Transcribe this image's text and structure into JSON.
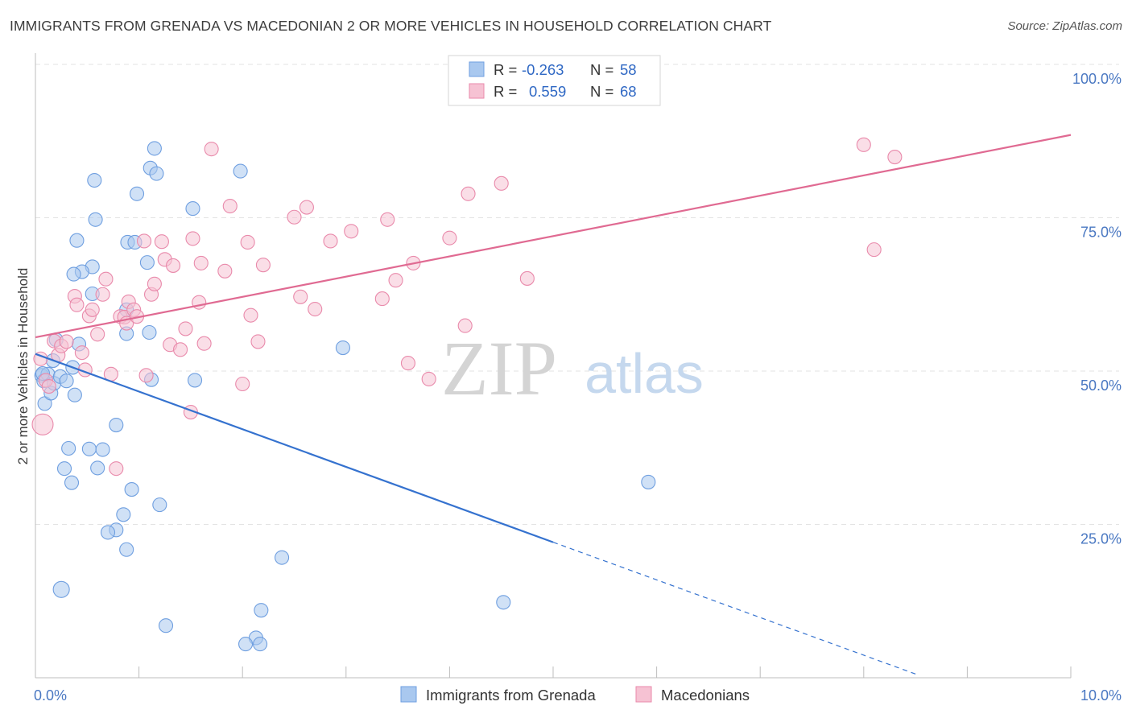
{
  "title": "IMMIGRANTS FROM GRENADA VS MACEDONIAN 2 OR MORE VEHICLES IN HOUSEHOLD CORRELATION CHART",
  "source": "Source: ZipAtlas.com",
  "watermark": {
    "zip": "ZIP",
    "atlas": "atlas"
  },
  "colors": {
    "blue_fill": "#a9c8ef",
    "blue_stroke": "#6f9fe0",
    "blue_line": "#3572cf",
    "pink_fill": "#f6c2d3",
    "pink_stroke": "#e98aab",
    "pink_line": "#e06a92",
    "tick_text": "#4a78c2",
    "grid": "#e3e3e3"
  },
  "legend_box": {
    "rows": [
      {
        "r_label": "R =",
        "r_value": "-0.263",
        "n_label": "N =",
        "n_value": "58",
        "series": "blue"
      },
      {
        "r_label": "R =",
        "r_value": "0.559",
        "n_label": "N =",
        "n_value": "68",
        "series": "pink"
      }
    ]
  },
  "chart_data": {
    "type": "scatter",
    "xlabel": "",
    "ylabel": "2 or more Vehicles in Household",
    "xlim": [
      0,
      10
    ],
    "ylim": [
      0,
      100
    ],
    "x_tick_labels": [
      "0.0%",
      "10.0%"
    ],
    "y_tick_labels": [
      "100.0%",
      "75.0%",
      "50.0%",
      "25.0%"
    ],
    "y_ticks": [
      100,
      75,
      50,
      25
    ],
    "grid": true,
    "legend_position": "bottom",
    "series": [
      {
        "name": "Immigrants from Grenada",
        "color": "blue",
        "trend": {
          "x0": 0,
          "y0": 52.8,
          "x1": 5.0,
          "y1": 22.1,
          "dashed_to_x": 8.5
        },
        "points": [
          [
            0.06,
            49.3
          ],
          [
            0.08,
            48.4
          ],
          [
            0.09,
            44.7
          ],
          [
            0.12,
            49.5
          ],
          [
            0.15,
            46.4
          ],
          [
            0.17,
            51.7
          ],
          [
            0.18,
            48.0
          ],
          [
            0.2,
            55.1
          ],
          [
            0.24,
            49.1
          ],
          [
            0.3,
            48.4
          ],
          [
            0.36,
            50.6
          ],
          [
            0.38,
            46.1
          ],
          [
            0.42,
            54.4
          ],
          [
            0.55,
            62.6
          ],
          [
            0.55,
            67.0
          ],
          [
            0.45,
            66.2
          ],
          [
            0.37,
            65.8
          ],
          [
            0.4,
            71.3
          ],
          [
            0.58,
            74.7
          ],
          [
            0.57,
            81.1
          ],
          [
            0.88,
            60.0
          ],
          [
            0.88,
            56.1
          ],
          [
            0.89,
            71.0
          ],
          [
            0.96,
            71.0
          ],
          [
            1.08,
            67.7
          ],
          [
            1.1,
            56.3
          ],
          [
            1.12,
            48.6
          ],
          [
            1.11,
            83.1
          ],
          [
            1.15,
            86.3
          ],
          [
            1.17,
            82.2
          ],
          [
            0.98,
            78.9
          ],
          [
            1.52,
            76.5
          ],
          [
            1.54,
            48.5
          ],
          [
            1.98,
            82.6
          ],
          [
            2.97,
            53.8
          ],
          [
            0.78,
            41.2
          ],
          [
            0.52,
            37.3
          ],
          [
            0.65,
            37.2
          ],
          [
            0.32,
            37.4
          ],
          [
            0.28,
            34.1
          ],
          [
            0.6,
            34.2
          ],
          [
            0.35,
            31.8
          ],
          [
            0.93,
            30.7
          ],
          [
            1.2,
            28.2
          ],
          [
            0.85,
            26.6
          ],
          [
            0.78,
            24.1
          ],
          [
            0.7,
            23.7
          ],
          [
            0.88,
            20.9
          ],
          [
            2.38,
            19.6
          ],
          [
            5.92,
            31.9
          ],
          [
            0.25,
            14.4
          ],
          [
            4.52,
            12.3
          ],
          [
            2.18,
            11.0
          ],
          [
            1.26,
            8.5
          ],
          [
            2.13,
            6.5
          ],
          [
            2.03,
            5.5
          ],
          [
            2.17,
            5.5
          ],
          [
            0.07,
            49.6
          ]
        ]
      },
      {
        "name": "Macedonians",
        "color": "pink",
        "trend": {
          "x0": 0,
          "y0": 55.5,
          "x1": 10.0,
          "y1": 88.5
        },
        "points": [
          [
            0.07,
            41.3
          ],
          [
            0.1,
            48.5
          ],
          [
            0.13,
            47.5
          ],
          [
            0.18,
            54.9
          ],
          [
            0.22,
            52.6
          ],
          [
            0.25,
            54.1
          ],
          [
            0.3,
            54.8
          ],
          [
            0.38,
            62.2
          ],
          [
            0.4,
            60.8
          ],
          [
            0.45,
            53.0
          ],
          [
            0.48,
            50.2
          ],
          [
            0.52,
            59.0
          ],
          [
            0.55,
            60.0
          ],
          [
            0.6,
            56.0
          ],
          [
            0.65,
            62.5
          ],
          [
            0.68,
            65.0
          ],
          [
            0.73,
            49.5
          ],
          [
            0.78,
            34.1
          ],
          [
            0.82,
            58.9
          ],
          [
            0.86,
            58.8
          ],
          [
            0.88,
            57.8
          ],
          [
            0.9,
            61.3
          ],
          [
            0.95,
            60.0
          ],
          [
            0.98,
            58.9
          ],
          [
            1.05,
            71.2
          ],
          [
            1.07,
            49.3
          ],
          [
            1.12,
            62.5
          ],
          [
            1.15,
            64.2
          ],
          [
            1.22,
            71.1
          ],
          [
            1.25,
            68.2
          ],
          [
            1.3,
            54.3
          ],
          [
            1.33,
            67.2
          ],
          [
            1.4,
            53.5
          ],
          [
            1.45,
            56.9
          ],
          [
            1.5,
            43.3
          ],
          [
            1.52,
            71.6
          ],
          [
            1.58,
            61.2
          ],
          [
            1.6,
            67.6
          ],
          [
            1.63,
            54.5
          ],
          [
            1.7,
            86.2
          ],
          [
            1.83,
            66.3
          ],
          [
            1.88,
            76.9
          ],
          [
            2.0,
            47.9
          ],
          [
            2.05,
            71.0
          ],
          [
            2.08,
            59.1
          ],
          [
            2.15,
            54.8
          ],
          [
            2.2,
            67.3
          ],
          [
            2.5,
            75.1
          ],
          [
            2.56,
            62.1
          ],
          [
            2.62,
            76.7
          ],
          [
            2.7,
            60.1
          ],
          [
            2.85,
            71.2
          ],
          [
            3.05,
            72.8
          ],
          [
            3.35,
            61.8
          ],
          [
            3.4,
            74.7
          ],
          [
            3.48,
            64.8
          ],
          [
            3.6,
            51.3
          ],
          [
            3.65,
            67.6
          ],
          [
            3.8,
            48.7
          ],
          [
            4.0,
            71.7
          ],
          [
            4.15,
            57.4
          ],
          [
            4.18,
            78.9
          ],
          [
            4.5,
            80.6
          ],
          [
            4.75,
            65.1
          ],
          [
            8.0,
            86.9
          ],
          [
            8.1,
            69.8
          ],
          [
            8.3,
            84.9
          ],
          [
            0.05,
            52.0
          ]
        ]
      }
    ]
  },
  "bottom_legend": [
    {
      "label": "Immigrants from Grenada",
      "series": "blue"
    },
    {
      "label": "Macedonians",
      "series": "pink"
    }
  ]
}
